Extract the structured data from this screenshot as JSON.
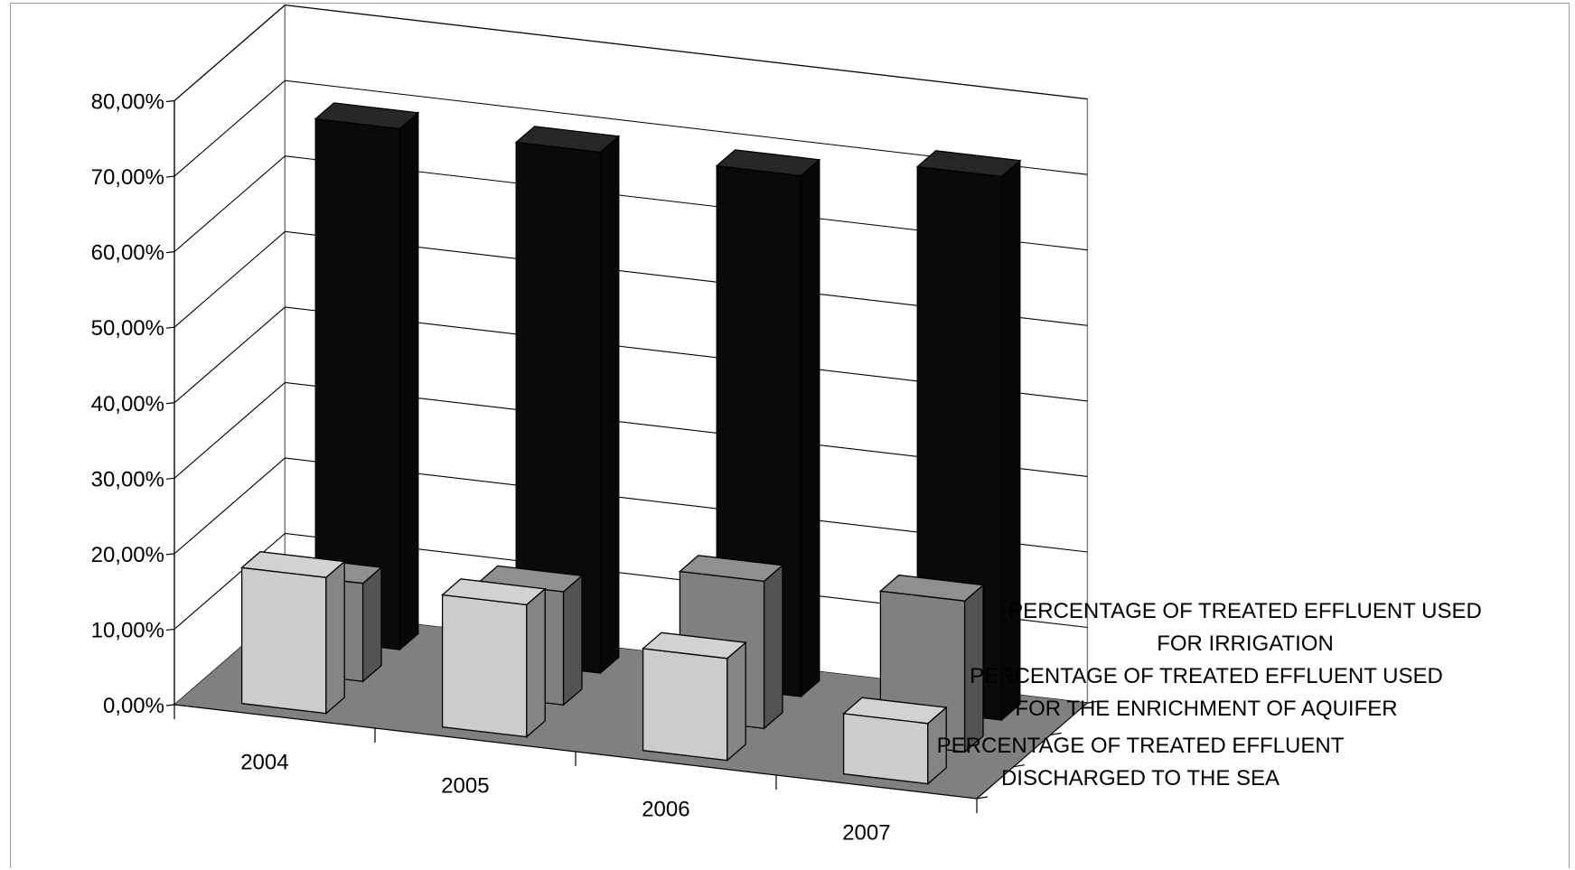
{
  "chart_data": {
    "type": "bar",
    "subtype": "3d-column",
    "categories": [
      "2004",
      "2005",
      "2006",
      "2007"
    ],
    "series": [
      {
        "name": "PERCENTAGE OF TREATED EFFLUENT USED FOR IRRIGATION",
        "label_lines": [
          "PERCENTAGE OF TREATED EFFLUENT USED",
          "FOR IRRIGATION"
        ],
        "color": "#0a0a0a",
        "values": [
          0.69,
          0.69,
          0.69,
          0.72
        ]
      },
      {
        "name": "PERCENTAGE OF TREATED EFFLUENT USED FOR THE ENRICHMENT OF AQUIFER",
        "label_lines": [
          "PERCENTAGE OF TREATED EFFLUENT USED",
          "FOR THE ENRICHMENT OF AQUIFER"
        ],
        "color": "#808080",
        "values": [
          0.13,
          0.15,
          0.195,
          0.2
        ]
      },
      {
        "name": "PERCENTAGE OF TREATED EFFLUENT DISCHARGED TO THE SEA",
        "label_lines": [
          "PERCENTAGE OF TREATED EFFLUENT",
          "DISCHARGED TO THE SEA"
        ],
        "color": "#cccccc",
        "values": [
          0.18,
          0.175,
          0.135,
          0.08
        ]
      }
    ],
    "ylim": [
      0,
      0.8
    ],
    "yticks": [
      "0,00%",
      "10,00%",
      "20,00%",
      "30,00%",
      "40,00%",
      "50,00%",
      "60,00%",
      "70,00%",
      "80,00%"
    ],
    "grid": true,
    "title": "",
    "xlabel": "",
    "ylabel": ""
  }
}
